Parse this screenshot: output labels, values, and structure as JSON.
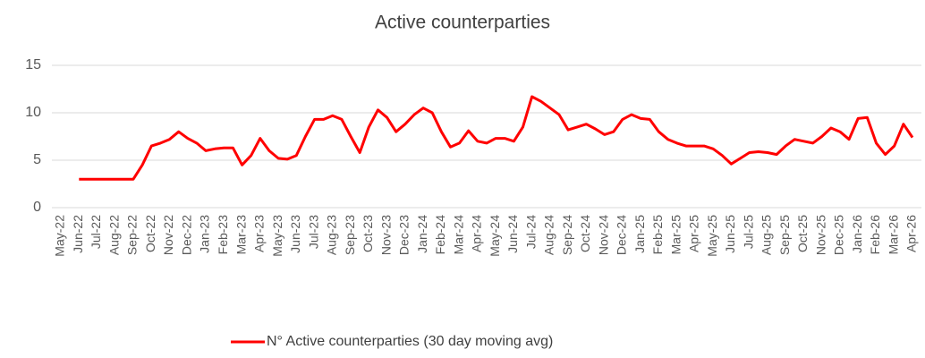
{
  "chart_data": {
    "type": "line",
    "title": "Active counterparties",
    "categories": [
      "May-22",
      null,
      "Jun-22",
      null,
      "Jul-22",
      null,
      "Aug-22",
      null,
      "Sep-22",
      null,
      "Oct-22",
      null,
      "Nov-22",
      null,
      "Dec-22",
      null,
      "Jan-23",
      null,
      "Feb-23",
      null,
      "Mar-23",
      null,
      "Apr-23",
      null,
      "May-23",
      null,
      "Jun-23",
      null,
      "Jul-23",
      null,
      "Aug-23",
      null,
      "Sep-23",
      null,
      "Oct-23",
      null,
      "Nov-23",
      null,
      "Dec-23",
      null,
      "Jan-24",
      null,
      "Feb-24",
      null,
      "Mar-24",
      null,
      "Apr-24",
      null,
      "May-24",
      null,
      "Jun-24",
      null,
      "Jul-24",
      null,
      "Aug-24",
      null,
      "Sep-24",
      null,
      "Oct-24",
      null,
      "Nov-24",
      null,
      "Dec-24",
      null,
      "Jan-25",
      null,
      "Feb-25",
      null,
      "Mar-25",
      null,
      "Apr-25",
      null,
      "May-25",
      null,
      "Jun-25",
      null,
      "Jul-25",
      null,
      "Aug-25",
      null,
      "Sep-25",
      null,
      "Oct-25",
      null,
      "Nov-25",
      null,
      "Dec-25",
      null,
      "Jan-26",
      null,
      "Feb-26",
      null,
      "Mar-26",
      null,
      "Apr-26"
    ],
    "series": [
      {
        "name": "N° Active counterparties (30 day moving avg)",
        "color": "#ff0000",
        "values": [
          null,
          null,
          3,
          3,
          3,
          3,
          3,
          3,
          3,
          4.5,
          6.5,
          6.8,
          7.2,
          8,
          7.3,
          6.8,
          6,
          6.2,
          6.3,
          6.3,
          4.5,
          5.5,
          7.3,
          6,
          5.2,
          5.1,
          5.5,
          7.5,
          9.3,
          9.3,
          9.7,
          9.3,
          7.5,
          5.8,
          8.5,
          10.3,
          9.5,
          8,
          8.8,
          9.8,
          10.5,
          10,
          8,
          6.4,
          6.8,
          8.1,
          7,
          6.8,
          7.3,
          7.3,
          7,
          8.5,
          11.7,
          11.2,
          10.5,
          9.8,
          8.2,
          8.5,
          8.8,
          8.3,
          7.7,
          8,
          9.3,
          9.8,
          9.4,
          9.3,
          8,
          7.2,
          6.8,
          6.5,
          6.5,
          6.5,
          6.2,
          5.5,
          4.6,
          5.2,
          5.8,
          5.9,
          5.8,
          5.6,
          6.5,
          7.2,
          7,
          6.8,
          7.5,
          8.4,
          8,
          7.2,
          9.4,
          9.5,
          6.8,
          5.6,
          6.5,
          8.8,
          7.4
        ]
      }
    ],
    "ylim": [
      0,
      15
    ],
    "yticks": [
      0,
      5,
      10,
      15
    ],
    "grid": true
  }
}
